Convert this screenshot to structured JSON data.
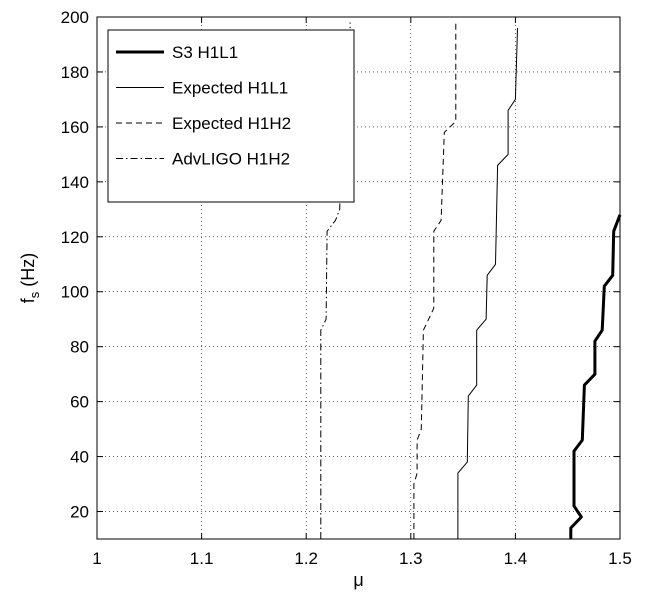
{
  "chart_data": {
    "type": "line",
    "xlabel": "μ",
    "ylabel_main": "f",
    "ylabel_sub": "s",
    "ylabel_unit": "(Hz)",
    "xlim": [
      1,
      1.5
    ],
    "ylim": [
      10,
      200
    ],
    "x_ticks": [
      1,
      1.1,
      1.2,
      1.3,
      1.4,
      1.5
    ],
    "x_tick_labels": [
      "1",
      "1.1",
      "1.2",
      "1.3",
      "1.4",
      "1.5"
    ],
    "y_ticks": [
      20,
      40,
      60,
      80,
      100,
      120,
      140,
      160,
      180,
      200
    ],
    "y_tick_labels": [
      "20",
      "40",
      "60",
      "80",
      "100",
      "120",
      "140",
      "160",
      "180",
      "200"
    ],
    "grid": true,
    "legend_position": "top-left",
    "series": [
      {
        "name": "S3 H1L1",
        "style": "solid-thick",
        "points": [
          [
            1.453,
            10
          ],
          [
            1.453,
            14
          ],
          [
            1.463,
            18
          ],
          [
            1.456,
            22
          ],
          [
            1.456,
            42
          ],
          [
            1.464,
            46
          ],
          [
            1.466,
            66
          ],
          [
            1.476,
            70
          ],
          [
            1.476,
            82
          ],
          [
            1.483,
            86
          ],
          [
            1.485,
            102
          ],
          [
            1.493,
            106
          ],
          [
            1.494,
            122
          ],
          [
            1.5,
            128
          ]
        ]
      },
      {
        "name": "Expected H1L1",
        "style": "solid-thin",
        "points": [
          [
            1.345,
            10
          ],
          [
            1.345,
            34
          ],
          [
            1.354,
            38
          ],
          [
            1.355,
            62
          ],
          [
            1.363,
            66
          ],
          [
            1.363,
            86
          ],
          [
            1.372,
            90
          ],
          [
            1.373,
            106
          ],
          [
            1.381,
            110
          ],
          [
            1.383,
            146
          ],
          [
            1.393,
            150
          ],
          [
            1.393,
            166
          ],
          [
            1.4,
            170
          ],
          [
            1.402,
            196
          ]
        ]
      },
      {
        "name": "Expected H1H2",
        "style": "dashed",
        "points": [
          [
            1.303,
            10
          ],
          [
            1.303,
            30
          ],
          [
            1.306,
            34
          ],
          [
            1.306,
            46
          ],
          [
            1.31,
            50
          ],
          [
            1.312,
            86
          ],
          [
            1.322,
            94
          ],
          [
            1.322,
            122
          ],
          [
            1.329,
            126
          ],
          [
            1.332,
            158
          ],
          [
            1.343,
            162
          ],
          [
            1.343,
            198
          ]
        ]
      },
      {
        "name": "AdvLIGO H1H2",
        "style": "dashdot",
        "points": [
          [
            1.214,
            10
          ],
          [
            1.214,
            86
          ],
          [
            1.219,
            90
          ],
          [
            1.22,
            122
          ],
          [
            1.228,
            126
          ],
          [
            1.232,
            130
          ],
          [
            1.233,
            142
          ],
          [
            1.242,
            150
          ],
          [
            1.242,
            198
          ]
        ]
      }
    ]
  }
}
